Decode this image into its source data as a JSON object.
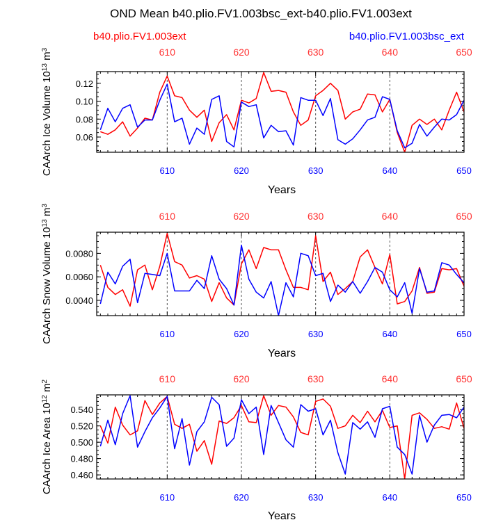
{
  "chart_data": {
    "type": "line",
    "title": "OND Mean b40.plio.FV1.003bsc_ext-b40.plio.FV1.003ext",
    "legend": [
      {
        "name": "b40.plio.FV1.003ext",
        "color": "#ff0000",
        "position": "top-left"
      },
      {
        "name": "b40.plio.FV1.003bsc_ext",
        "color": "#0000ff",
        "position": "top-right"
      }
    ],
    "x": [
      601,
      602,
      603,
      604,
      605,
      606,
      607,
      608,
      609,
      610,
      611,
      612,
      613,
      614,
      615,
      616,
      617,
      618,
      619,
      620,
      621,
      622,
      623,
      624,
      625,
      626,
      627,
      628,
      629,
      630,
      631,
      632,
      633,
      634,
      635,
      636,
      637,
      638,
      639,
      640,
      641,
      642,
      643,
      644,
      645,
      646,
      647,
      648,
      649,
      650
    ],
    "xlim": [
      600.5,
      650
    ],
    "xticks": [
      610,
      620,
      630,
      640,
      650
    ],
    "xtick_labels": [
      "610",
      "620",
      "630",
      "640",
      "650"
    ],
    "panels": [
      {
        "xlabel": "Years",
        "ylabel": "CAArch Ice Volume 10",
        "ylabel_exp": "13",
        "ylabel_unit": " m",
        "ylabel_unit_exp": "3",
        "ylim": [
          0.043,
          0.133
        ],
        "yticks": [
          0.06,
          0.08,
          0.1,
          0.12
        ],
        "ytick_labels": [
          "0.06",
          "0.08",
          "0.10",
          "0.12"
        ],
        "series": [
          {
            "name": "b40.plio.FV1.003ext",
            "color": "#ff0000",
            "values": [
              0.066,
              0.063,
              0.068,
              0.077,
              0.061,
              0.07,
              0.081,
              0.079,
              0.11,
              0.128,
              0.106,
              0.104,
              0.09,
              0.082,
              0.09,
              0.055,
              0.076,
              0.085,
              0.068,
              0.101,
              0.098,
              0.103,
              0.132,
              0.111,
              0.112,
              0.11,
              0.088,
              0.073,
              0.079,
              0.106,
              0.112,
              0.12,
              0.112,
              0.08,
              0.088,
              0.091,
              0.108,
              0.107,
              0.088,
              0.102,
              0.065,
              0.043,
              0.073,
              0.08,
              0.074,
              0.08,
              0.068,
              0.09,
              0.11,
              0.088
            ]
          },
          {
            "name": "b40.plio.FV1.003bsc_ext",
            "color": "#0000ff",
            "values": [
              0.068,
              0.092,
              0.077,
              0.092,
              0.096,
              0.071,
              0.079,
              0.079,
              0.101,
              0.119,
              0.077,
              0.081,
              0.052,
              0.07,
              0.063,
              0.102,
              0.106,
              0.055,
              0.049,
              0.099,
              0.094,
              0.096,
              0.059,
              0.073,
              0.066,
              0.067,
              0.051,
              0.104,
              0.101,
              0.101,
              0.084,
              0.103,
              0.057,
              0.052,
              0.058,
              0.068,
              0.079,
              0.082,
              0.105,
              0.102,
              0.067,
              0.048,
              0.053,
              0.074,
              0.061,
              0.071,
              0.08,
              0.079,
              0.085,
              0.101
            ]
          }
        ]
      },
      {
        "xlabel": "Years",
        "ylabel": "CAArch Snow Volume 10",
        "ylabel_exp": "13",
        "ylabel_unit": " m",
        "ylabel_unit_exp": "3",
        "ylim": [
          0.0027,
          0.0098
        ],
        "yticks": [
          0.004,
          0.006,
          0.008
        ],
        "ytick_labels": [
          "0.0040",
          "0.0060",
          "0.0080"
        ],
        "series": [
          {
            "name": "b40.plio.FV1.003ext",
            "color": "#ff0000",
            "values": [
              0.007,
              0.0051,
              0.0045,
              0.0049,
              0.0035,
              0.0066,
              0.007,
              0.0049,
              0.0069,
              0.0097,
              0.0073,
              0.007,
              0.0059,
              0.0061,
              0.0058,
              0.0039,
              0.0055,
              0.0042,
              0.0036,
              0.0071,
              0.0083,
              0.0067,
              0.0085,
              0.0083,
              0.0083,
              0.0066,
              0.0051,
              0.0051,
              0.0049,
              0.0095,
              0.0056,
              0.0064,
              0.0045,
              0.005,
              0.0056,
              0.0077,
              0.0083,
              0.0068,
              0.0054,
              0.0079,
              0.0037,
              0.0039,
              0.0048,
              0.0068,
              0.0046,
              0.0047,
              0.0067,
              0.0066,
              0.0067,
              0.0052
            ]
          },
          {
            "name": "b40.plio.FV1.003bsc_ext",
            "color": "#0000ff",
            "values": [
              0.0037,
              0.0064,
              0.0054,
              0.0069,
              0.0075,
              0.0038,
              0.0063,
              0.0062,
              0.0061,
              0.008,
              0.0048,
              0.0048,
              0.0048,
              0.0057,
              0.005,
              0.0078,
              0.0058,
              0.005,
              0.0036,
              0.0087,
              0.0058,
              0.0047,
              0.0042,
              0.0056,
              0.0027,
              0.0055,
              0.0043,
              0.008,
              0.0078,
              0.0061,
              0.0063,
              0.0039,
              0.0053,
              0.0047,
              0.0056,
              0.0046,
              0.0056,
              0.0068,
              0.0064,
              0.0049,
              0.0043,
              0.0055,
              0.0029,
              0.0067,
              0.0047,
              0.0048,
              0.0072,
              0.007,
              0.0062,
              0.0055
            ]
          }
        ]
      },
      {
        "xlabel": "Years",
        "ylabel": "CAArch Ice Area 10",
        "ylabel_exp": "12",
        "ylabel_unit": " m",
        "ylabel_unit_exp": "2",
        "ylim": [
          0.455,
          0.558
        ],
        "yticks": [
          0.46,
          0.48,
          0.5,
          0.52,
          0.54
        ],
        "ytick_labels": [
          "0.460",
          "0.480",
          "0.500",
          "0.520",
          "0.540"
        ],
        "series": [
          {
            "name": "b40.plio.FV1.003ext",
            "color": "#ff0000",
            "values": [
              0.52,
              0.499,
              0.543,
              0.521,
              0.509,
              0.514,
              0.551,
              0.534,
              0.548,
              0.556,
              0.522,
              0.517,
              0.522,
              0.489,
              0.502,
              0.473,
              0.526,
              0.523,
              0.53,
              0.545,
              0.525,
              0.524,
              0.557,
              0.533,
              0.545,
              0.543,
              0.531,
              0.512,
              0.509,
              0.55,
              0.553,
              0.544,
              0.517,
              0.52,
              0.533,
              0.524,
              0.538,
              0.525,
              0.539,
              0.518,
              0.52,
              0.455,
              0.533,
              0.536,
              0.528,
              0.517,
              0.519,
              0.516,
              0.548,
              0.517
            ]
          },
          {
            "name": "b40.plio.FV1.003bsc_ext",
            "color": "#0000ff",
            "values": [
              0.495,
              0.527,
              0.497,
              0.535,
              0.557,
              0.494,
              0.513,
              0.53,
              0.542,
              0.556,
              0.492,
              0.529,
              0.472,
              0.513,
              0.525,
              0.555,
              0.546,
              0.495,
              0.505,
              0.552,
              0.535,
              0.543,
              0.485,
              0.545,
              0.524,
              0.503,
              0.494,
              0.546,
              0.538,
              0.541,
              0.509,
              0.527,
              0.487,
              0.461,
              0.524,
              0.516,
              0.525,
              0.506,
              0.541,
              0.544,
              0.494,
              0.485,
              0.461,
              0.533,
              0.5,
              0.521,
              0.533,
              0.534,
              0.53,
              0.543
            ]
          }
        ]
      }
    ]
  }
}
